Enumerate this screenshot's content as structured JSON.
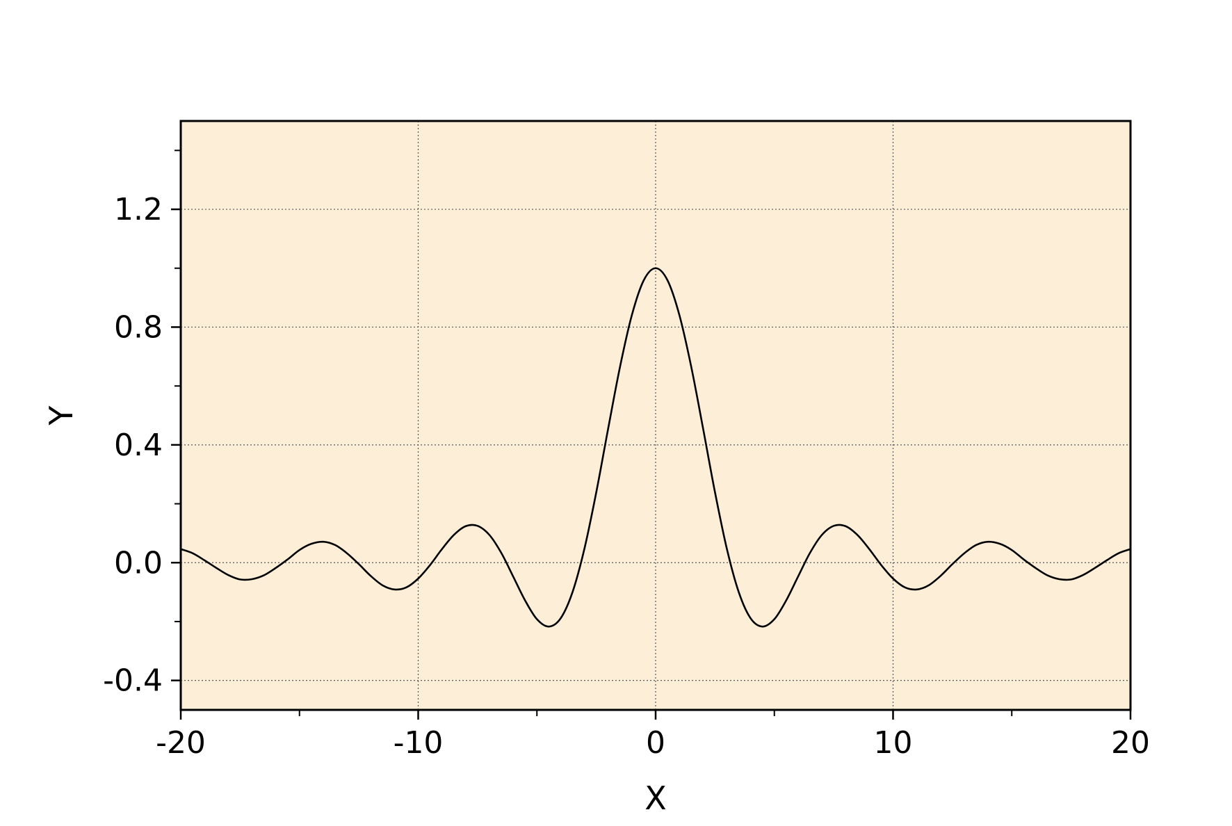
{
  "chart_data": {
    "type": "line",
    "title": "",
    "xlabel": "X",
    "ylabel": "Y",
    "xlim": [
      -20,
      20
    ],
    "ylim": [
      -0.5,
      1.5
    ],
    "x_ticks": [
      -20,
      -10,
      0,
      10,
      20
    ],
    "x_tick_labels": [
      "-20",
      "-10",
      "0",
      "10",
      "20"
    ],
    "x_minor_ticks": [
      -15,
      -5,
      5,
      15
    ],
    "y_ticks": [
      -0.4,
      0.0,
      0.4,
      0.8,
      1.2
    ],
    "y_tick_labels": [
      "-0.4",
      "0.0",
      "0.4",
      "0.8",
      "1.2"
    ],
    "y_minor_ticks": [
      -0.2,
      0.2,
      0.6,
      1.0,
      1.4
    ],
    "grid": true,
    "grid_style": "dotted",
    "legend": "none",
    "colors": {
      "plot_background": "#fdeed8",
      "line": "#000000",
      "axes": "#000000",
      "grid": "#555555"
    },
    "series": [
      {
        "x": [
          -20,
          -19.5,
          -19,
          -18.5,
          -18,
          -17.5,
          -17,
          -16.5,
          -16,
          -15.5,
          -15,
          -14.5,
          -14,
          -13.5,
          -13,
          -12.5,
          -12,
          -11.5,
          -11,
          -10.5,
          -10,
          -9.5,
          -9,
          -8.5,
          -8,
          -7.5,
          -7,
          -6.5,
          -6,
          -5.5,
          -5,
          -4.5,
          -4,
          -3.5,
          -3,
          -2.5,
          -2,
          -1.5,
          -1,
          -0.5,
          0,
          0.5,
          1,
          1.5,
          2,
          2.5,
          3,
          3.5,
          4,
          4.5,
          5,
          5.5,
          6,
          6.5,
          7,
          7.5,
          8,
          8.5,
          9,
          9.5,
          10,
          10.5,
          11,
          11.5,
          12,
          12.5,
          13,
          13.5,
          14,
          14.5,
          15,
          15.5,
          16,
          16.5,
          17,
          17.5,
          18,
          18.5,
          19,
          19.5,
          20
        ],
        "y": [
          0.046,
          0.032,
          0.008,
          -0.018,
          -0.042,
          -0.057,
          -0.056,
          -0.043,
          -0.018,
          0.011,
          0.043,
          0.064,
          0.071,
          0.06,
          0.032,
          -0.005,
          -0.045,
          -0.077,
          -0.091,
          -0.084,
          -0.054,
          -0.008,
          0.046,
          0.094,
          0.124,
          0.125,
          0.094,
          0.033,
          -0.047,
          -0.128,
          -0.192,
          -0.217,
          -0.189,
          -0.1,
          0.047,
          0.239,
          0.455,
          0.665,
          0.841,
          0.959,
          1.0,
          0.959,
          0.841,
          0.665,
          0.455,
          0.239,
          0.047,
          -0.1,
          -0.189,
          -0.217,
          -0.192,
          -0.128,
          -0.047,
          0.033,
          0.094,
          0.125,
          0.124,
          0.094,
          0.046,
          -0.008,
          -0.054,
          -0.084,
          -0.091,
          -0.077,
          -0.045,
          -0.005,
          0.032,
          0.06,
          0.071,
          0.064,
          0.043,
          0.011,
          -0.018,
          -0.043,
          -0.056,
          -0.057,
          -0.042,
          -0.018,
          0.008,
          0.032,
          0.046
        ]
      }
    ]
  }
}
